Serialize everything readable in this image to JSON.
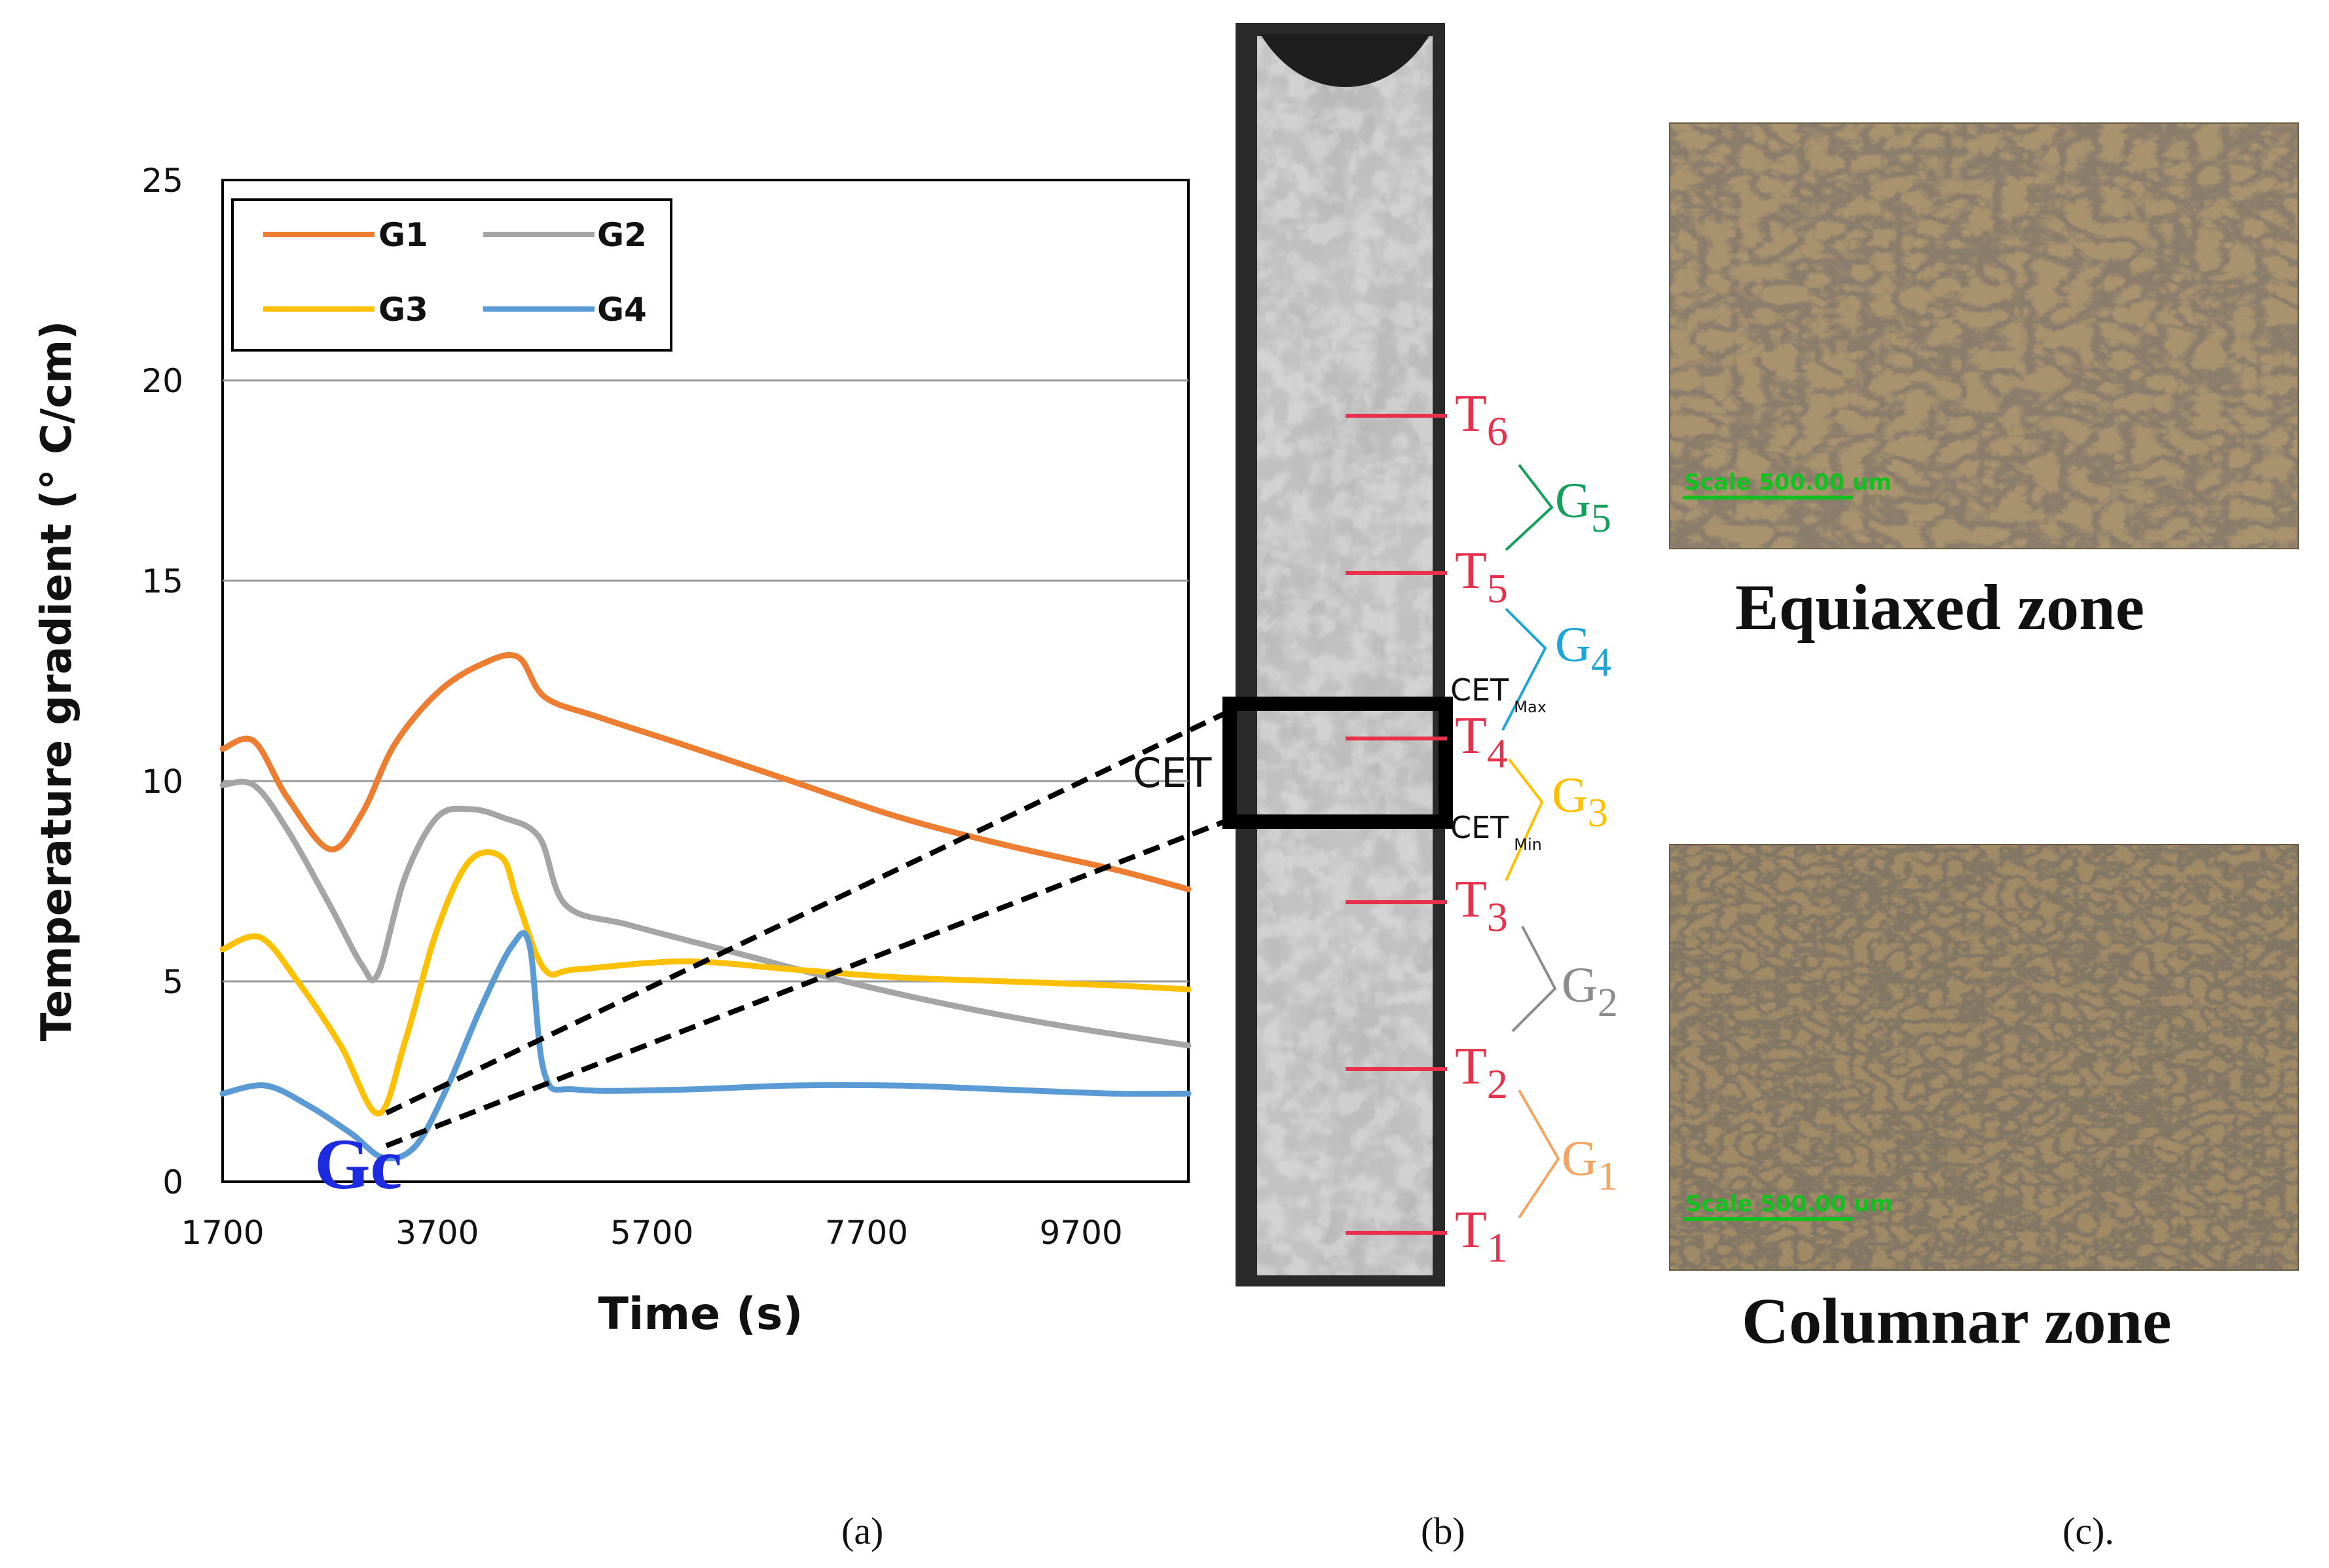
{
  "chart_data": {
    "type": "line",
    "title": "",
    "xlabel": "Time (s)",
    "ylabel": "Temperature gradient (° C/cm)",
    "xlim": [
      1700,
      10700
    ],
    "ylim": [
      0,
      25
    ],
    "x_ticks": [
      1700,
      3700,
      5700,
      7700,
      9700
    ],
    "y_ticks": [
      0,
      5,
      10,
      15,
      20,
      25
    ],
    "grid": "horizontal",
    "legend_position": "top-left",
    "series": [
      {
        "name": "G1",
        "color": "#ED7D31",
        "x": [
          1700,
          1990,
          2300,
          2700,
          3000,
          3300,
          3700,
          4100,
          4450,
          4700,
          5200,
          6000,
          7000,
          8000,
          9000,
          10000,
          10700
        ],
        "y": [
          10.8,
          11.0,
          9.6,
          8.3,
          9.2,
          10.9,
          12.2,
          12.9,
          13.1,
          12.1,
          11.6,
          10.9,
          10.0,
          9.1,
          8.4,
          7.8,
          7.3
        ]
      },
      {
        "name": "G2",
        "color": "#A5A5A5",
        "x": [
          1700,
          1990,
          2300,
          2700,
          3000,
          3150,
          3400,
          3700,
          4000,
          4300,
          4650,
          4900,
          5500,
          6500,
          7500,
          8500,
          9500,
          10700
        ],
        "y": [
          9.9,
          9.9,
          8.8,
          6.9,
          5.4,
          5.2,
          7.6,
          9.1,
          9.3,
          9.1,
          8.6,
          6.9,
          6.4,
          5.7,
          5.0,
          4.4,
          3.9,
          3.4
        ]
      },
      {
        "name": "G3",
        "color": "#FFC000",
        "x": [
          1700,
          2050,
          2400,
          2800,
          3150,
          3400,
          3700,
          4000,
          4300,
          4450,
          4700,
          5000,
          6000,
          7000,
          8000,
          9000,
          10000,
          10700
        ],
        "y": [
          5.8,
          6.1,
          5.0,
          3.4,
          1.7,
          3.5,
          6.3,
          8.0,
          8.1,
          7.0,
          5.3,
          5.3,
          5.5,
          5.3,
          5.1,
          5.0,
          4.9,
          4.8
        ]
      },
      {
        "name": "G4",
        "color": "#5B9BD5",
        "x": [
          1700,
          2100,
          2500,
          2900,
          3200,
          3500,
          3800,
          4100,
          4400,
          4560,
          4700,
          5000,
          6000,
          7000,
          8000,
          9000,
          10000,
          10700
        ],
        "y": [
          2.2,
          2.4,
          1.9,
          1.2,
          0.6,
          0.9,
          2.4,
          4.3,
          5.9,
          5.9,
          2.7,
          2.3,
          2.3,
          2.4,
          2.4,
          2.3,
          2.2,
          2.2
        ]
      }
    ],
    "annotations": {
      "gc": "Gc",
      "cet": "CET"
    }
  },
  "casting": {
    "sensors": [
      {
        "letter": "T",
        "sub": "6"
      },
      {
        "letter": "T",
        "sub": "5"
      },
      {
        "letter": "T",
        "sub": "4"
      },
      {
        "letter": "T",
        "sub": "3"
      },
      {
        "letter": "T",
        "sub": "2"
      },
      {
        "letter": "T",
        "sub": "1"
      }
    ],
    "gradients": [
      {
        "letter": "G",
        "sub": "5",
        "color": "#13A05A"
      },
      {
        "letter": "G",
        "sub": "4",
        "color": "#1CA5D6"
      },
      {
        "letter": "G",
        "sub": "3",
        "color": "#FFC000"
      },
      {
        "letter": "G",
        "sub": "2",
        "color": "#8C8C8C"
      },
      {
        "letter": "G",
        "sub": "1",
        "color": "#F4A460"
      }
    ],
    "cet_max": {
      "text": "CET",
      "sub": "Max"
    },
    "cet_min": {
      "text": "CET",
      "sub": "Min"
    },
    "sensor_color": "#E8304A"
  },
  "micrographs": {
    "equiaxed_caption": "Equiaxed zone",
    "columnar_caption": "Columnar zone",
    "equiaxed_scale": "Scale 500.00 um",
    "columnar_scale": "Scale 500.00 um"
  },
  "panel_labels": {
    "a": "(a)",
    "b": "(b)",
    "c": "(c)."
  }
}
